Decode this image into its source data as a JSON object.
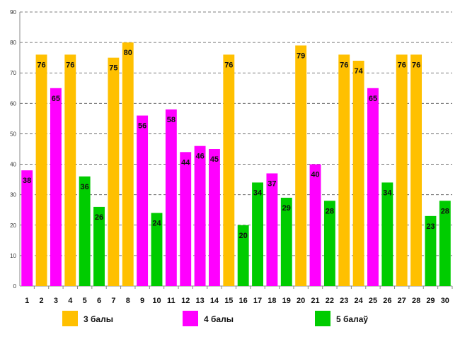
{
  "chart_data": {
    "type": "bar",
    "title": "",
    "xlabel": "",
    "ylabel": "",
    "ylim": [
      0,
      90
    ],
    "y_ticks": [
      "0",
      "10",
      "20",
      "30",
      "40",
      "50",
      "60",
      "70",
      "80",
      "90"
    ],
    "grid": true,
    "legend_position": "bottom",
    "categories": [
      "1",
      "2",
      "3",
      "4",
      "5",
      "6",
      "7",
      "8",
      "9",
      "10",
      "11",
      "12",
      "13",
      "14",
      "15",
      "16",
      "17",
      "18",
      "19",
      "20",
      "21",
      "22",
      "23",
      "24",
      "25",
      "26",
      "27",
      "28",
      "29",
      "30"
    ],
    "values": [
      38,
      76,
      65,
      76,
      36,
      26,
      75,
      80,
      56,
      24,
      58,
      44,
      46,
      45,
      76,
      20,
      34,
      37,
      29,
      79,
      40,
      28,
      76,
      74,
      65,
      34,
      76,
      76,
      23,
      28
    ],
    "value_labels": [
      "38",
      "76",
      "65",
      "76",
      "36",
      "26",
      "75",
      "80",
      "56",
      "24",
      "58",
      "44",
      "46",
      "45",
      "76",
      "20",
      "34",
      "37",
      "29",
      "79",
      "40",
      "28",
      "76",
      "74",
      "65",
      "34",
      "76",
      "76",
      "23",
      "28"
    ],
    "groups": [
      "4b",
      "3b",
      "4b",
      "3b",
      "5b",
      "5b",
      "3b",
      "3b",
      "4b",
      "5b",
      "4b",
      "4b",
      "4b",
      "4b",
      "3b",
      "5b",
      "5b",
      "4b",
      "5b",
      "3b",
      "4b",
      "5b",
      "3b",
      "3b",
      "4b",
      "5b",
      "3b",
      "3b",
      "5b",
      "5b"
    ],
    "legend": [
      {
        "key": "3b",
        "label": "3 балы",
        "color": "#FFC000"
      },
      {
        "key": "4b",
        "label": "4 балы",
        "color": "#FF00FF"
      },
      {
        "key": "5b",
        "label": "5 балаў",
        "color": "#00CC00"
      }
    ]
  }
}
